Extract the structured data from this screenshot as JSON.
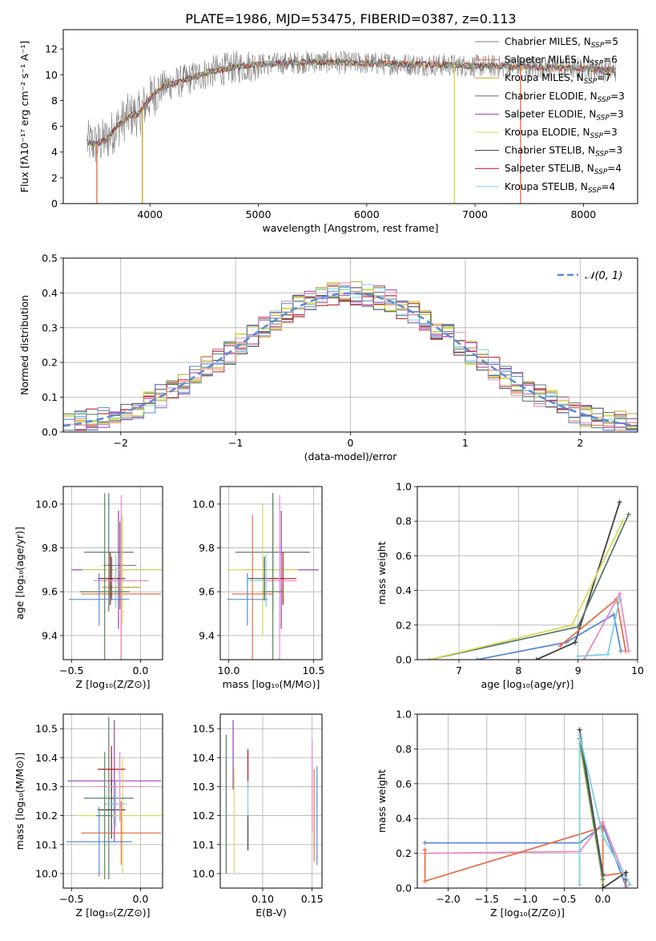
{
  "title": "PLATE=1986, MJD=53475, FIBERID=0387, z=0.113",
  "colors": {
    "Chabrier MILES": "#7f7f7f",
    "Salpeter MILES": "#e8704a",
    "Kroupa MILES": "#c9a227",
    "Chabrier ELODIE": "#5a7a6a",
    "Salpeter ELODIE": "#9a3fb0",
    "Kroupa ELODIE": "#d8d85a",
    "Chabrier STELIB": "#404040",
    "Salpeter STELIB": "#b01818",
    "Kroupa STELIB": "#7fd0dc",
    "normal": "#5b8bd6"
  },
  "chart_data": [
    {
      "type": "line",
      "xlabel": "wavelength [Angstrom, rest frame]",
      "ylabel": "Flux [fλ10⁻¹⁷ erg cm⁻² s⁻¹ A⁻¹]",
      "xlim": [
        3200,
        8500
      ],
      "ylim": [
        0,
        13.5
      ],
      "xticks": [
        4000,
        5000,
        6000,
        7000,
        8000
      ],
      "yticks": [
        0,
        2,
        4,
        6,
        8,
        10,
        12
      ],
      "grid": false,
      "legend_position": "top-right",
      "series": [
        {
          "name": "Chabrier MILES",
          "suffix": "=5"
        },
        {
          "name": "Salpeter MILES",
          "suffix": "=6"
        },
        {
          "name": "Kroupa MILES",
          "suffix": "=7"
        },
        {
          "name": "Chabrier ELODIE",
          "suffix": "=3"
        },
        {
          "name": "Salpeter ELODIE",
          "suffix": "=3"
        },
        {
          "name": "Kroupa ELODIE",
          "suffix": "=3"
        },
        {
          "name": "Chabrier STELIB",
          "suffix": "=3"
        },
        {
          "name": "Salpeter STELIB",
          "suffix": "=4"
        },
        {
          "name": "Kroupa STELIB",
          "suffix": "=4"
        }
      ],
      "model_knots_x": [
        3400,
        3500,
        3600,
        3700,
        3800,
        3900,
        4000,
        4100,
        4200,
        4300,
        4400,
        4600,
        4800,
        5000,
        5500,
        6000,
        6500,
        7000,
        7500,
        8000,
        8300
      ],
      "model_knots_y": [
        4.8,
        4.6,
        5.0,
        6.0,
        6.8,
        7.0,
        8.2,
        9.0,
        9.3,
        9.5,
        9.8,
        10.3,
        10.6,
        10.8,
        11.0,
        10.9,
        10.8,
        10.7,
        10.6,
        10.5,
        10.3
      ],
      "dips": [
        {
          "series": "Salpeter MILES",
          "x": 3510,
          "y": 0
        },
        {
          "series": "Kroupa MILES",
          "x": 3930,
          "y": 0
        },
        {
          "series": "Kroupa ELODIE",
          "x": 6810,
          "y": 0
        },
        {
          "series": "Salpeter MILES",
          "x": 7420,
          "y": 0
        }
      ]
    },
    {
      "type": "histogram",
      "xlabel": "(data-model)/error",
      "ylabel": "Normed distribution",
      "xlim": [
        -2.5,
        2.5
      ],
      "ylim": [
        0,
        0.5
      ],
      "xticks": [
        -2,
        -1,
        0,
        1,
        2
      ],
      "yticks": [
        0.0,
        0.1,
        0.2,
        0.3,
        0.4,
        0.5
      ],
      "grid": true,
      "legend_position": "top-right",
      "legend": "𝒩(0, 1)",
      "bin_width": 0.1
    },
    {
      "type": "errorbar",
      "xlabel": "Z [log₁₀(Z/Z⊙)]",
      "ylabel": "age  [log₁₀(age/yr)]",
      "xlim": [
        -0.56,
        0.16
      ],
      "ylim": [
        9.29,
        10.08
      ],
      "xticks": [
        -0.5,
        0.0
      ],
      "yticks": [
        9.4,
        9.6,
        9.8,
        10.0
      ],
      "grid": true,
      "points": [
        {
          "series": "Chabrier MILES",
          "x": -0.15,
          "xerr": 0.12,
          "y": 9.72,
          "yerr": 0.2
        },
        {
          "series": "Salpeter MILES",
          "x": -0.14,
          "xerr": 0.29,
          "y": 9.59,
          "yerr": 0.36
        },
        {
          "series": "Kroupa MILES",
          "x": -0.14,
          "xerr": 0.14,
          "y": 9.62,
          "yerr": 0.28
        },
        {
          "series": "Chabrier ELODIE",
          "x": -0.23,
          "xerr": 0.18,
          "y": 9.78,
          "yerr": 0.27
        },
        {
          "series": "Salpeter ELODIE",
          "x": -0.16,
          "xerr": 0.34,
          "y": 9.7,
          "yerr": 0.27
        },
        {
          "series": "Kroupa ELODIE",
          "x": -0.13,
          "xerr": 0.29,
          "y": 9.7,
          "yerr": 0.25
        },
        {
          "series": "Chabrier STELIB",
          "x": -0.21,
          "xerr": 0.1,
          "y": 9.66,
          "yerr": 0.1
        },
        {
          "series": "Salpeter STELIB",
          "x": -0.22,
          "xerr": 0.08,
          "y": 9.66,
          "yerr": 0.12
        },
        {
          "series": "Kroupa STELIB",
          "x": -0.18,
          "xerr": 0.1,
          "y": 9.65,
          "yerr": 0.12
        },
        {
          "series": "pink",
          "x": -0.14,
          "xerr": 0.2,
          "y": 9.65,
          "yerr": 0.39
        },
        {
          "series": "blue",
          "x": -0.3,
          "xerr": 0.22,
          "y": 9.565,
          "yerr": 0.12
        },
        {
          "series": "green",
          "x": -0.26,
          "xerr": 0.18,
          "y": 9.6,
          "yerr": 0.45
        }
      ]
    },
    {
      "type": "errorbar",
      "xlabel": "mass [log₁₀(M/M⊙)]",
      "ylabel": "",
      "xlim": [
        9.95,
        10.55
      ],
      "ylim": [
        9.29,
        10.08
      ],
      "xticks": [
        10.0,
        10.5
      ],
      "yticks": [
        9.4,
        9.6,
        9.8,
        10.0
      ],
      "grid": true,
      "points": [
        {
          "series": "Chabrier ELODIE",
          "x": 10.26,
          "xerr": 0.22,
          "y": 9.78,
          "yerr": 0.27
        },
        {
          "series": "Salpeter ELODIE",
          "x": 10.31,
          "xerr": 0.22,
          "y": 9.7,
          "yerr": 0.27
        },
        {
          "series": "Kroupa ELODIE",
          "x": 10.2,
          "xerr": 0.21,
          "y": 9.7,
          "yerr": 0.3
        },
        {
          "series": "Salpeter MILES",
          "x": 10.14,
          "xerr": 0.12,
          "y": 9.59,
          "yerr": 0.36
        },
        {
          "series": "Chabrier STELIB",
          "x": 10.21,
          "xerr": 0.1,
          "y": 9.66,
          "yerr": 0.1
        },
        {
          "series": "Salpeter STELIB",
          "x": 10.32,
          "xerr": 0.08,
          "y": 9.66,
          "yerr": 0.12
        },
        {
          "series": "Kroupa STELIB",
          "x": 10.22,
          "xerr": 0.1,
          "y": 9.65,
          "yerr": 0.12
        },
        {
          "series": "pink",
          "x": 10.3,
          "xerr": 0.1,
          "y": 9.65,
          "yerr": 0.39
        },
        {
          "series": "blue",
          "x": 10.11,
          "xerr": 0.12,
          "y": 9.565,
          "yerr": 0.12
        },
        {
          "series": "green",
          "x": 10.26,
          "xerr": 0.06,
          "y": 9.6,
          "yerr": 0.45
        }
      ]
    },
    {
      "type": "line",
      "xlabel": "age  [log₁₀(age/yr)]",
      "ylabel": "mass weight",
      "xlim": [
        6.3,
        10.0
      ],
      "ylim": [
        0,
        1.0
      ],
      "xticks": [
        7,
        8,
        9,
        10
      ],
      "yticks": [
        0.0,
        0.2,
        0.4,
        0.6,
        0.8,
        1.0
      ],
      "grid": true,
      "series": [
        {
          "name": "Chabrier STELIB",
          "x": [
            8.3,
            8.95,
            9.7
          ],
          "y": [
            0.0,
            0.1,
            0.91
          ]
        },
        {
          "name": "Chabrier ELODIE",
          "x": [
            6.5,
            9.0,
            9.85
          ],
          "y": [
            0.0,
            0.19,
            0.84
          ]
        },
        {
          "name": "Kroupa ELODIE",
          "x": [
            6.5,
            8.9,
            9.75
          ],
          "y": [
            0.0,
            0.2,
            0.8
          ]
        },
        {
          "name": "blue",
          "x": [
            7.3,
            8.8,
            9.6,
            9.72
          ],
          "y": [
            0.0,
            0.1,
            0.26,
            0.05
          ]
        },
        {
          "name": "Salpeter MILES",
          "x": [
            8.7,
            9.65,
            9.8
          ],
          "y": [
            0.08,
            0.35,
            0.05
          ]
        },
        {
          "name": "pink",
          "x": [
            9.1,
            9.7,
            9.85
          ],
          "y": [
            0.0,
            0.38,
            0.05
          ]
        },
        {
          "name": "Kroupa STELIB",
          "x": [
            9.0,
            9.5,
            9.7
          ],
          "y": [
            0.02,
            0.03,
            0.35
          ]
        }
      ]
    },
    {
      "type": "errorbar",
      "xlabel": "Z [log₁₀(Z/Z⊙)]",
      "ylabel": "mass [log₁₀(M/M⊙)]",
      "xlim": [
        -0.56,
        0.16
      ],
      "ylim": [
        9.95,
        10.55
      ],
      "xticks": [
        -0.5,
        0.0
      ],
      "yticks": [
        10.0,
        10.1,
        10.2,
        10.3,
        10.4,
        10.5
      ],
      "grid": true,
      "points": [
        {
          "series": "Salpeter ELODIE",
          "x": -0.19,
          "xerr": 0.34,
          "y": 10.32,
          "yerr": 0.21
        },
        {
          "series": "Kroupa ELODIE",
          "x": -0.13,
          "xerr": 0.33,
          "y": 10.2,
          "yerr": 0.2
        },
        {
          "series": "Chabrier ELODIE",
          "x": -0.23,
          "xerr": 0.18,
          "y": 10.26,
          "yerr": 0.28
        },
        {
          "series": "Salpeter STELIB",
          "x": -0.21,
          "xerr": 0.1,
          "y": 10.36,
          "yerr": 0.08
        },
        {
          "series": "Chabrier STELIB",
          "x": -0.21,
          "xerr": 0.1,
          "y": 10.22,
          "yerr": 0.1
        },
        {
          "series": "Kroupa STELIB",
          "x": -0.18,
          "xerr": 0.08,
          "y": 10.24,
          "yerr": 0.08
        },
        {
          "series": "Salpeter MILES",
          "x": -0.14,
          "xerr": 0.29,
          "y": 10.14,
          "yerr": 0.11
        },
        {
          "series": "pink",
          "x": -0.15,
          "xerr": 0.2,
          "y": 10.3,
          "yerr": 0.12
        },
        {
          "series": "blue",
          "x": -0.3,
          "xerr": 0.24,
          "y": 10.11,
          "yerr": 0.12
        },
        {
          "series": "green",
          "x": -0.26,
          "xerr": 0.06,
          "y": 10.2,
          "yerr": 0.22
        }
      ]
    },
    {
      "type": "errorbar",
      "xlabel": "E(B-V)",
      "ylabel": "",
      "xlim": [
        0.057,
        0.16
      ],
      "ylim": [
        9.95,
        10.55
      ],
      "xticks": [
        0.1,
        0.15
      ],
      "yticks": [
        10.0,
        10.1,
        10.2,
        10.3,
        10.4,
        10.5
      ],
      "grid": true,
      "points": [
        {
          "series": "Chabrier ELODIE",
          "x": 0.063,
          "xerr": 0,
          "y": 10.24,
          "yerr": 0.24
        },
        {
          "series": "Salpeter ELODIE",
          "x": 0.07,
          "xerr": 0,
          "y": 10.41,
          "yerr": 0.12
        },
        {
          "series": "Kroupa ELODIE",
          "x": 0.071,
          "xerr": 0,
          "y": 10.18,
          "yerr": 0.18
        },
        {
          "series": "Salpeter STELIB",
          "x": 0.085,
          "xerr": 0,
          "y": 10.36,
          "yerr": 0.07
        },
        {
          "series": "Chabrier STELIB",
          "x": 0.085,
          "xerr": 0,
          "y": 10.15,
          "yerr": 0.07
        },
        {
          "series": "Kroupa STELIB",
          "x": 0.085,
          "xerr": 0,
          "y": 10.26,
          "yerr": 0.06
        },
        {
          "series": "pink",
          "x": 0.15,
          "xerr": 0,
          "y": 10.3,
          "yerr": 0.16
        },
        {
          "series": "Salpeter MILES",
          "x": 0.152,
          "xerr": 0,
          "y": 10.2,
          "yerr": 0.16
        },
        {
          "series": "blue",
          "x": 0.155,
          "xerr": 0,
          "y": 10.2,
          "yerr": 0.17
        }
      ]
    },
    {
      "type": "line",
      "xlabel": "Z [log₁₀(Z/Z⊙)]",
      "ylabel": "mass weight",
      "xlim": [
        -2.4,
        0.45
      ],
      "ylim": [
        0,
        1.0
      ],
      "xticks": [
        -2.0,
        -1.5,
        -1.0,
        -0.5,
        0.0
      ],
      "yticks": [
        0.0,
        0.2,
        0.4,
        0.6,
        0.8,
        1.0
      ],
      "grid": true,
      "series": [
        {
          "name": "blue",
          "x": [
            -2.3,
            -0.3,
            0.0,
            0.3
          ],
          "y": [
            0.26,
            0.26,
            0.36,
            0.01
          ]
        },
        {
          "name": "pink",
          "x": [
            -2.3,
            -0.3,
            0.0,
            0.3
          ],
          "y": [
            0.2,
            0.21,
            0.38,
            0.05
          ]
        },
        {
          "name": "Salpeter MILES",
          "x": [
            -2.3,
            -2.3,
            0.0,
            0.0,
            0.3,
            0.3
          ],
          "y": [
            0.22,
            0.04,
            0.35,
            0.07,
            0.09,
            0.0
          ]
        },
        {
          "name": "Chabrier STELIB",
          "x": [
            -0.3,
            0.0,
            0.0,
            0.3,
            0.3
          ],
          "y": [
            0.91,
            0.08,
            0.0,
            0.09,
            0.05
          ]
        },
        {
          "name": "Kroupa ELODIE",
          "x": [
            -0.3,
            0.0
          ],
          "y": [
            0.83,
            0.04
          ]
        },
        {
          "name": "Chabrier ELODIE",
          "x": [
            -0.3,
            0.0
          ],
          "y": [
            0.86,
            0.05
          ]
        },
        {
          "name": "Kroupa STELIB",
          "x": [
            -0.3,
            -0.3,
            0.0,
            0.35
          ],
          "y": [
            0.02,
            0.88,
            0.3,
            0.02
          ]
        }
      ]
    }
  ]
}
